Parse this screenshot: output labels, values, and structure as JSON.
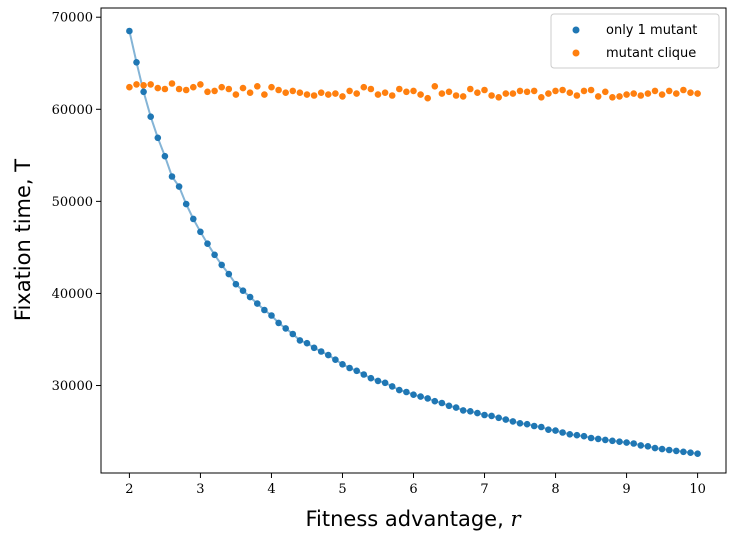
{
  "chart_data": {
    "type": "scatter",
    "xlabel": "Fitness advantage,",
    "xlabel_var": "r",
    "ylabel": "Fixation time, T",
    "xlim": [
      1.6,
      10.4
    ],
    "ylim": [
      20500,
      71000
    ],
    "xticks": [
      2,
      3,
      4,
      5,
      6,
      7,
      8,
      9,
      10
    ],
    "yticks": [
      30000,
      40000,
      50000,
      60000,
      70000
    ],
    "grid": false,
    "legend_position": "top-right",
    "series": [
      {
        "name": "only 1 mutant",
        "color": "#1f77b4",
        "fit_line": true,
        "x": [
          2.0,
          2.1,
          2.2,
          2.3,
          2.4,
          2.5,
          2.6,
          2.7,
          2.8,
          2.9,
          3.0,
          3.1,
          3.2,
          3.3,
          3.4,
          3.5,
          3.6,
          3.7,
          3.8,
          3.9,
          4.0,
          4.1,
          4.2,
          4.3,
          4.4,
          4.5,
          4.6,
          4.7,
          4.8,
          4.9,
          5.0,
          5.1,
          5.2,
          5.3,
          5.4,
          5.5,
          5.6,
          5.7,
          5.8,
          5.9,
          6.0,
          6.1,
          6.2,
          6.3,
          6.4,
          6.5,
          6.6,
          6.7,
          6.8,
          6.9,
          7.0,
          7.1,
          7.2,
          7.3,
          7.4,
          7.5,
          7.6,
          7.7,
          7.8,
          7.9,
          8.0,
          8.1,
          8.2,
          8.3,
          8.4,
          8.5,
          8.6,
          8.7,
          8.8,
          8.9,
          9.0,
          9.1,
          9.2,
          9.3,
          9.4,
          9.5,
          9.6,
          9.7,
          9.8,
          9.9,
          10.0
        ],
        "y": [
          68500,
          65100,
          61900,
          59200,
          56900,
          54900,
          52700,
          51600,
          49700,
          48100,
          46700,
          45400,
          44200,
          43100,
          42100,
          41000,
          40300,
          39600,
          38900,
          38200,
          37600,
          36800,
          36200,
          35600,
          34900,
          34600,
          34100,
          33700,
          33300,
          32800,
          32300,
          31900,
          31600,
          31200,
          30800,
          30500,
          30300,
          29900,
          29500,
          29300,
          29000,
          28800,
          28600,
          28300,
          28100,
          27800,
          27600,
          27300,
          27200,
          27000,
          26800,
          26700,
          26500,
          26300,
          26100,
          25900,
          25800,
          25600,
          25500,
          25200,
          25100,
          24900,
          24700,
          24600,
          24500,
          24300,
          24200,
          24100,
          24000,
          23900,
          23800,
          23700,
          23500,
          23400,
          23200,
          23100,
          23000,
          22900,
          22800,
          22700,
          22600
        ]
      },
      {
        "name": "mutant clique",
        "color": "#ff7f0e",
        "fit_line": false,
        "x": [
          2.0,
          2.1,
          2.2,
          2.3,
          2.4,
          2.5,
          2.6,
          2.7,
          2.8,
          2.9,
          3.0,
          3.1,
          3.2,
          3.3,
          3.4,
          3.5,
          3.6,
          3.7,
          3.8,
          3.9,
          4.0,
          4.1,
          4.2,
          4.3,
          4.4,
          4.5,
          4.6,
          4.7,
          4.8,
          4.9,
          5.0,
          5.1,
          5.2,
          5.3,
          5.4,
          5.5,
          5.6,
          5.7,
          5.8,
          5.9,
          6.0,
          6.1,
          6.2,
          6.3,
          6.4,
          6.5,
          6.6,
          6.7,
          6.8,
          6.9,
          7.0,
          7.1,
          7.2,
          7.3,
          7.4,
          7.5,
          7.6,
          7.7,
          7.8,
          7.9,
          8.0,
          8.1,
          8.2,
          8.3,
          8.4,
          8.5,
          8.6,
          8.7,
          8.8,
          8.9,
          9.0,
          9.1,
          9.2,
          9.3,
          9.4,
          9.5,
          9.6,
          9.7,
          9.8,
          9.9,
          10.0
        ],
        "y": [
          62400,
          62700,
          62600,
          62700,
          62300,
          62200,
          62800,
          62200,
          62100,
          62400,
          62700,
          61900,
          62000,
          62400,
          62200,
          61600,
          62300,
          61800,
          62500,
          61600,
          62400,
          62100,
          61800,
          62000,
          61800,
          61600,
          61500,
          61800,
          61600,
          61700,
          61400,
          62000,
          61700,
          62400,
          62200,
          61600,
          61800,
          61500,
          62200,
          61900,
          62000,
          61600,
          61200,
          62500,
          61700,
          61900,
          61500,
          61400,
          62200,
          61800,
          62100,
          61500,
          61300,
          61700,
          61700,
          62000,
          61900,
          62000,
          61300,
          61700,
          62000,
          62100,
          61800,
          61500,
          62000,
          62100,
          61400,
          61900,
          61300,
          61400,
          61600,
          61700,
          61500,
          61700,
          62000,
          61600,
          62000,
          61700,
          62100,
          61800,
          61700
        ]
      }
    ]
  }
}
